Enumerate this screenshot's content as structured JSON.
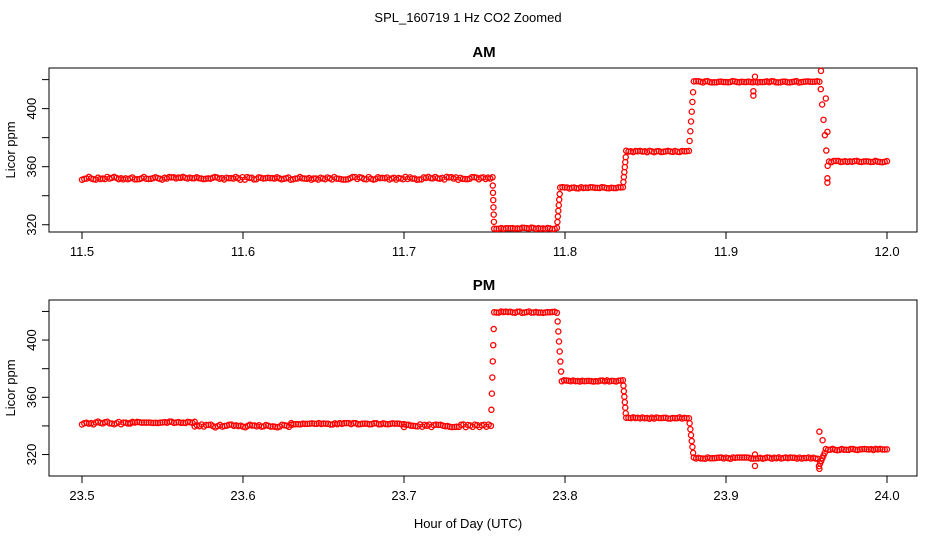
{
  "figure": {
    "title": "SPL_160719  1 Hz CO2 Zoomed",
    "xlabel": "Hour of Day (UTC)"
  },
  "colors": {
    "points": "#ff0000",
    "axis": "#000000"
  },
  "chart_data": [
    {
      "type": "scatter",
      "title": "AM",
      "ylabel": "Licor ppm",
      "xlim": [
        11.5,
        12.0
      ],
      "ylim": [
        315,
        428
      ],
      "xticks": [
        "11.5",
        "11.6",
        "11.7",
        "11.8",
        "11.9",
        "12.0"
      ],
      "yticks": [
        "320",
        "360",
        "400"
      ],
      "marker": "open-circle",
      "segments": [
        {
          "x": [
            11.5,
            11.755
          ],
          "y": [
            351,
            353
          ]
        },
        {
          "x": [
            11.756,
            11.795
          ],
          "y": [
            317,
            318
          ]
        },
        {
          "x": [
            11.797,
            11.836
          ],
          "y": [
            345,
            346
          ]
        },
        {
          "x": [
            11.838,
            11.877
          ],
          "y": [
            370,
            371
          ]
        },
        {
          "x": [
            11.88,
            11.958
          ],
          "y": [
            418,
            419
          ]
        },
        {
          "x": [
            11.964,
            12.0
          ],
          "y": [
            363,
            364
          ]
        }
      ],
      "transitions": [
        {
          "x": [
            11.755,
            11.756
          ],
          "y": [
            352,
            317
          ]
        },
        {
          "x": [
            11.795,
            11.797
          ],
          "y": [
            318,
            345
          ]
        },
        {
          "x": [
            11.836,
            11.838
          ],
          "y": [
            346,
            370
          ]
        },
        {
          "x": [
            11.877,
            11.88
          ],
          "y": [
            371,
            418
          ]
        },
        {
          "x": [
            11.958,
            11.964
          ],
          "y": [
            424,
            350
          ]
        }
      ],
      "outliers": [
        {
          "x": 11.917,
          "y": 412
        },
        {
          "x": 11.917,
          "y": 409
        },
        {
          "x": 11.918,
          "y": 422
        },
        {
          "x": 11.959,
          "y": 426
        },
        {
          "x": 11.962,
          "y": 407
        },
        {
          "x": 11.963,
          "y": 384
        },
        {
          "x": 11.963,
          "y": 352
        },
        {
          "x": 11.963,
          "y": 349
        }
      ]
    },
    {
      "type": "scatter",
      "title": "PM",
      "ylabel": "Licor ppm",
      "xlim": [
        23.5,
        24.0
      ],
      "ylim": [
        305,
        428
      ],
      "xticks": [
        "23.5",
        "23.6",
        "23.7",
        "23.8",
        "23.9",
        "24.0"
      ],
      "yticks": [
        "320",
        "360",
        "400"
      ],
      "marker": "open-circle",
      "segments": [
        {
          "x": [
            23.5,
            23.53
          ],
          "y": [
            341,
            343
          ]
        },
        {
          "x": [
            23.53,
            23.57
          ],
          "y": [
            342,
            343
          ]
        },
        {
          "x": [
            23.57,
            23.63
          ],
          "y": [
            339,
            341
          ]
        },
        {
          "x": [
            23.63,
            23.7
          ],
          "y": [
            341,
            342
          ]
        },
        {
          "x": [
            23.7,
            23.754
          ],
          "y": [
            339,
            341
          ]
        },
        {
          "x": [
            23.756,
            23.795
          ],
          "y": [
            419,
            420
          ]
        },
        {
          "x": [
            23.798,
            23.836
          ],
          "y": [
            371,
            372
          ]
        },
        {
          "x": [
            23.838,
            23.877
          ],
          "y": [
            345,
            346
          ]
        },
        {
          "x": [
            23.88,
            23.957
          ],
          "y": [
            317,
            318
          ]
        },
        {
          "x": [
            23.962,
            24.0
          ],
          "y": [
            323,
            324
          ]
        }
      ],
      "transitions": [
        {
          "x": [
            23.754,
            23.756
          ],
          "y": [
            340,
            419
          ]
        },
        {
          "x": [
            23.795,
            23.798
          ],
          "y": [
            420,
            371
          ]
        },
        {
          "x": [
            23.836,
            23.838
          ],
          "y": [
            372,
            345
          ]
        },
        {
          "x": [
            23.877,
            23.88
          ],
          "y": [
            346,
            317
          ]
        },
        {
          "x": [
            23.957,
            23.962
          ],
          "y": [
            310,
            323
          ]
        }
      ],
      "outliers": [
        {
          "x": 23.918,
          "y": 312
        },
        {
          "x": 23.918,
          "y": 320
        },
        {
          "x": 23.958,
          "y": 336
        },
        {
          "x": 23.958,
          "y": 310
        },
        {
          "x": 23.96,
          "y": 330
        }
      ]
    }
  ]
}
